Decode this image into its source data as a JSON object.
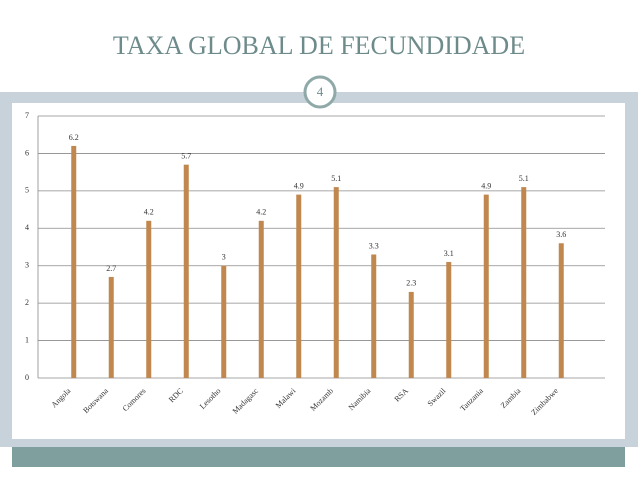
{
  "slide_number": "4",
  "chart_data": {
    "type": "bar",
    "title": "TAXA GLOBAL DE FECUNDIDADE",
    "categories": [
      "Angola",
      "Botswana",
      "Comores",
      "RDC",
      "Lesotho",
      "Madagasc",
      "Malawi",
      "Mozamb",
      "Namibia",
      "RSA",
      "Swazil",
      "Tanzania",
      "Zambia",
      "Zimbabwe"
    ],
    "values": [
      6.2,
      2.7,
      4.2,
      5.7,
      3,
      4.2,
      4.9,
      5.1,
      3.3,
      2.3,
      3.1,
      4.9,
      5.1,
      3.6
    ],
    "color": "#c0874f",
    "ylim": [
      0,
      7
    ],
    "yticks": [
      0,
      1,
      2,
      3,
      4,
      5,
      6,
      7
    ],
    "grid": true
  }
}
